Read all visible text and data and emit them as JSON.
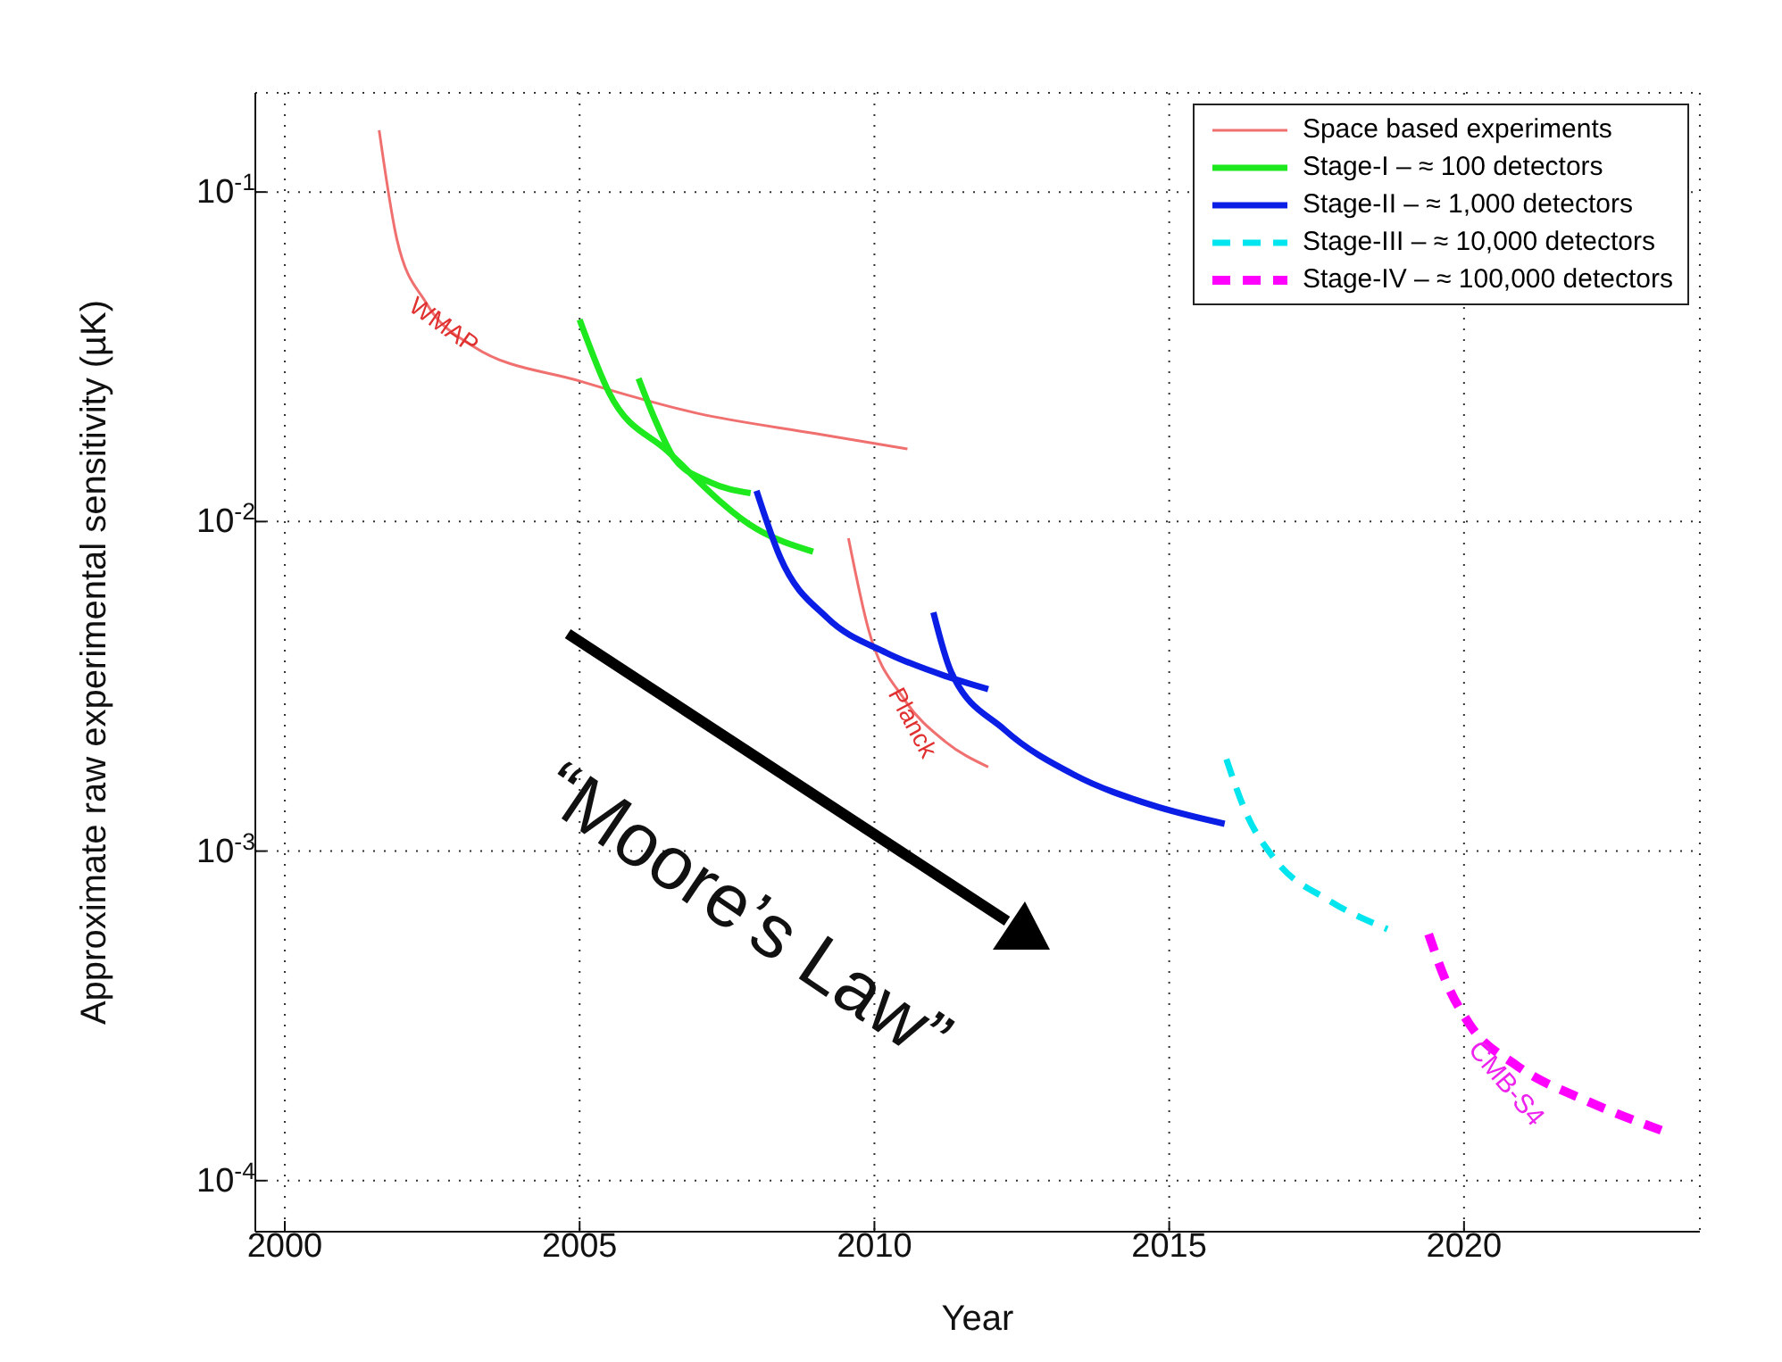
{
  "chart_data": {
    "type": "line",
    "xlabel": "Year",
    "ylabel": "Approximate raw experimental sensitivity (µK)",
    "xlim": [
      1999.5,
      2024
    ],
    "xticks": [
      2000,
      2005,
      2010,
      2015,
      2020
    ],
    "ylim": [
      7e-05,
      0.2
    ],
    "yticks": [
      {
        "value": 0.0001,
        "label": "10$^{-4}$"
      },
      {
        "value": 0.001,
        "label": "10$^{-3}$"
      },
      {
        "value": 0.01,
        "label": "10$^{-2}$"
      },
      {
        "value": 0.1,
        "label": "10$^{-1}$"
      }
    ],
    "log": "y",
    "grid": true,
    "legend": "top right",
    "series": [
      {
        "name": "Space based experiments",
        "color": "#f07070",
        "x": [
          2001.6,
          2001.9,
          2002.4,
          2003.2,
          2005.0,
          2007.0,
          2009.0,
          2010.56,
          null,
          2009.56,
          2009.9,
          2010.5,
          2011.2,
          2011.93
        ],
        "values": [
          0.154,
          0.072,
          0.046,
          0.034,
          0.0267,
          0.0213,
          0.0185,
          0.0166,
          null,
          0.0089,
          0.0047,
          0.0029,
          0.00215,
          0.0018
        ]
      },
      {
        "name": "Stage-I – ≈ 100 detectors",
        "color": "#1ee81e",
        "x": [
          2005.0,
          2005.5,
          2006.5,
          2008.0,
          2008.96,
          null,
          2006.0,
          2006.3,
          2006.6,
          2007.2,
          2007.9
        ],
        "values": [
          0.041,
          0.0246,
          0.0163,
          0.0095,
          0.0081,
          null,
          0.0272,
          0.02,
          0.0156,
          0.0132,
          0.0122
        ]
      },
      {
        "name": "Stage-II – ≈ 1,000 detectors",
        "color": "#0a1ee6",
        "x": [
          2008.0,
          2008.4,
          2009.2,
          2010.2,
          2011.2,
          2011.93,
          null,
          2011.0,
          2011.3,
          2012.2,
          2013.4,
          2014.7,
          2015.94
        ],
        "values": [
          0.0124,
          0.0078,
          0.0051,
          0.004,
          0.0034,
          0.0031,
          null,
          0.0053,
          0.0035,
          0.00234,
          0.0017,
          0.00138,
          0.00121
        ]
      },
      {
        "name": "Stage-III – ≈ 10,000 detectors",
        "color": "#00e5ee",
        "line_style": "dashed",
        "x": [
          2015.97,
          2016.3,
          2016.8,
          2017.7,
          2018.7
        ],
        "values": [
          0.0019,
          0.00131,
          0.00094,
          0.00071,
          0.00058
        ]
      },
      {
        "name": "Stage-IV – ≈ 100,000 detectors",
        "color": "#ff00ff",
        "line_style": "dashed",
        "x": [
          2019.4,
          2019.7,
          2020.1,
          2020.9,
          2022.1,
          2023.4
        ],
        "values": [
          0.00056,
          0.0004,
          0.000297,
          0.000223,
          0.000174,
          0.000141
        ]
      }
    ],
    "annotations": [
      "WMAP",
      "Planck",
      "CMB-S4",
      "“Moore’s Law”"
    ]
  }
}
